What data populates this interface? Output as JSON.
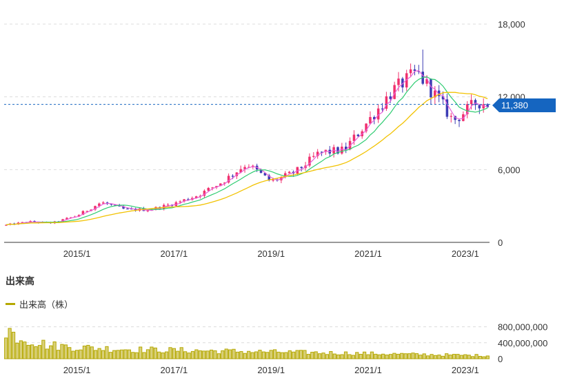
{
  "price_chart": {
    "current_price_label": "11,380",
    "current_price": 11380,
    "y_ticks": [
      {
        "value": 18000,
        "label": "18,000"
      },
      {
        "value": 12000,
        "label": "12,000"
      },
      {
        "value": 6000,
        "label": "6,000"
      },
      {
        "value": 0,
        "label": "0"
      }
    ],
    "x_ticks": [
      {
        "t": 1.5,
        "label": "2015/1"
      },
      {
        "t": 3.5,
        "label": "2017/1"
      },
      {
        "t": 5.5,
        "label": "2019/1"
      },
      {
        "t": 7.5,
        "label": "2021/1"
      },
      {
        "t": 9.5,
        "label": "2023/1"
      }
    ]
  },
  "volume_section": {
    "title": "出来高",
    "legend_label": "出来高（株）",
    "y_ticks": [
      {
        "value": 800000000,
        "label": "800,000,000"
      },
      {
        "value": 400000000,
        "label": "400,000,000"
      },
      {
        "value": 0,
        "label": "0"
      }
    ],
    "x_ticks": [
      {
        "t": 1.5,
        "label": "2015/1"
      },
      {
        "t": 3.5,
        "label": "2017/1"
      },
      {
        "t": 5.5,
        "label": "2019/1"
      },
      {
        "t": 7.5,
        "label": "2021/1"
      },
      {
        "t": 9.5,
        "label": "2023/1"
      }
    ]
  },
  "colors": {
    "up_candle": "#f0306e",
    "down_candle": "#3c3cb4",
    "ma_short": "#e860d8",
    "ma_mid": "#2ecc71",
    "ma_long": "#f2c200",
    "volume": "#b5a800",
    "price_tag": "#1565c0",
    "grid": "#dcdcdc"
  },
  "chart_data": {
    "type": "candlestick",
    "x_unit": "years since start of chart",
    "ylim": [
      0,
      18000
    ],
    "price_line": 11380,
    "anchors": [
      {
        "t": 0.0,
        "price": 1400
      },
      {
        "t": 0.5,
        "price": 1700
      },
      {
        "t": 1.0,
        "price": 1600
      },
      {
        "t": 1.5,
        "price": 2200
      },
      {
        "t": 2.0,
        "price": 3300
      },
      {
        "t": 2.5,
        "price": 2700
      },
      {
        "t": 3.0,
        "price": 2700
      },
      {
        "t": 3.5,
        "price": 3200
      },
      {
        "t": 4.0,
        "price": 3900
      },
      {
        "t": 4.5,
        "price": 5000
      },
      {
        "t": 5.0,
        "price": 6500
      },
      {
        "t": 5.5,
        "price": 5000
      },
      {
        "t": 6.0,
        "price": 5800
      },
      {
        "t": 6.5,
        "price": 7400
      },
      {
        "t": 7.0,
        "price": 7600
      },
      {
        "t": 7.5,
        "price": 10000
      },
      {
        "t": 8.0,
        "price": 12500
      },
      {
        "t": 8.5,
        "price": 14000
      },
      {
        "t": 8.75,
        "price": 12800
      },
      {
        "t": 9.0,
        "price": 11500
      },
      {
        "t": 9.25,
        "price": 10000
      },
      {
        "t": 9.5,
        "price": 10800
      },
      {
        "t": 9.75,
        "price": 11600
      },
      {
        "t": 10.0,
        "price": 11380
      }
    ],
    "volume": {
      "ylim": [
        0,
        1000000000
      ],
      "approx_values": [
        700000000,
        350000000,
        280000000,
        240000000,
        220000000,
        200000000,
        180000000,
        160000000,
        140000000,
        120000000,
        100000000,
        80000000
      ]
    }
  }
}
